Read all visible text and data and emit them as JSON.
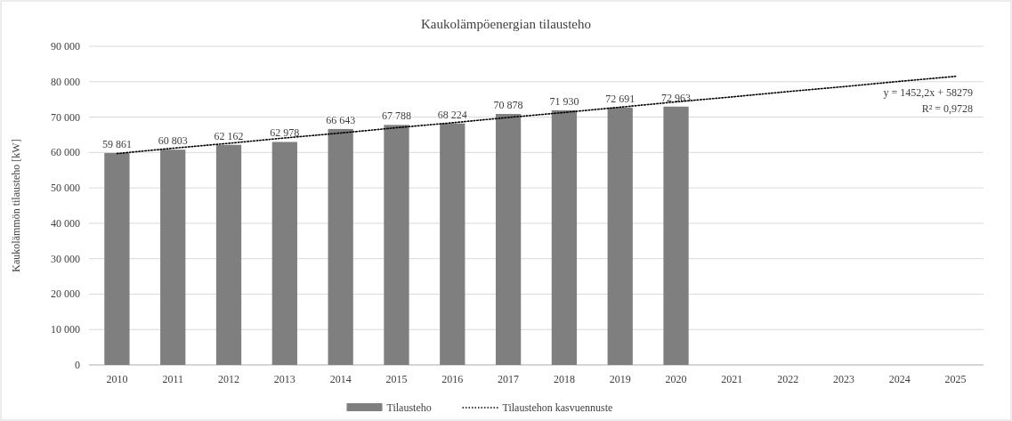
{
  "chart_data": {
    "type": "bar",
    "title": "Kaukolämpöenergian tilausteho",
    "ylabel": "Kaukolämmön tilausteho [kW]",
    "categories": [
      "2010",
      "2011",
      "2012",
      "2013",
      "2014",
      "2015",
      "2016",
      "2017",
      "2018",
      "2019",
      "2020",
      "2021",
      "2022",
      "2023",
      "2024",
      "2025"
    ],
    "series": [
      {
        "name": "Tilausteho",
        "color": "#7f7f7f",
        "values": [
          59861,
          60803,
          62162,
          62978,
          66643,
          67788,
          68224,
          70878,
          71930,
          72691,
          72963,
          null,
          null,
          null,
          null,
          null
        ],
        "value_labels": [
          "59 861",
          "60 803",
          "62 162",
          "62 978",
          "66 643",
          "67 788",
          "68 224",
          "70 878",
          "71 930",
          "72 691",
          "72 963",
          null,
          null,
          null,
          null,
          null
        ]
      },
      {
        "name": "Tilaustehon kasvuennuste",
        "type": "line",
        "color": "#000000",
        "line_style": "dotted",
        "values": [
          59700,
          61200,
          62600,
          64100,
          65500,
          67000,
          68400,
          69900,
          71300,
          72800,
          74300,
          75700,
          77200,
          78600,
          80100,
          81500
        ]
      }
    ],
    "ylim": [
      0,
      90000
    ],
    "yticks": [
      {
        "value": 0,
        "label": "0"
      },
      {
        "value": 10000,
        "label": "10 000"
      },
      {
        "value": 20000,
        "label": "20 000"
      },
      {
        "value": 30000,
        "label": "30 000"
      },
      {
        "value": 40000,
        "label": "40 000"
      },
      {
        "value": 50000,
        "label": "50 000"
      },
      {
        "value": 60000,
        "label": "60 000"
      },
      {
        "value": 70000,
        "label": "70 000"
      },
      {
        "value": 80000,
        "label": "80 000"
      },
      {
        "value": 90000,
        "label": "90 000"
      }
    ],
    "grid": "y",
    "legend": "bottom",
    "annotations": [
      "y = 1452,2x + 58279",
      "R² = 0,9728"
    ]
  }
}
